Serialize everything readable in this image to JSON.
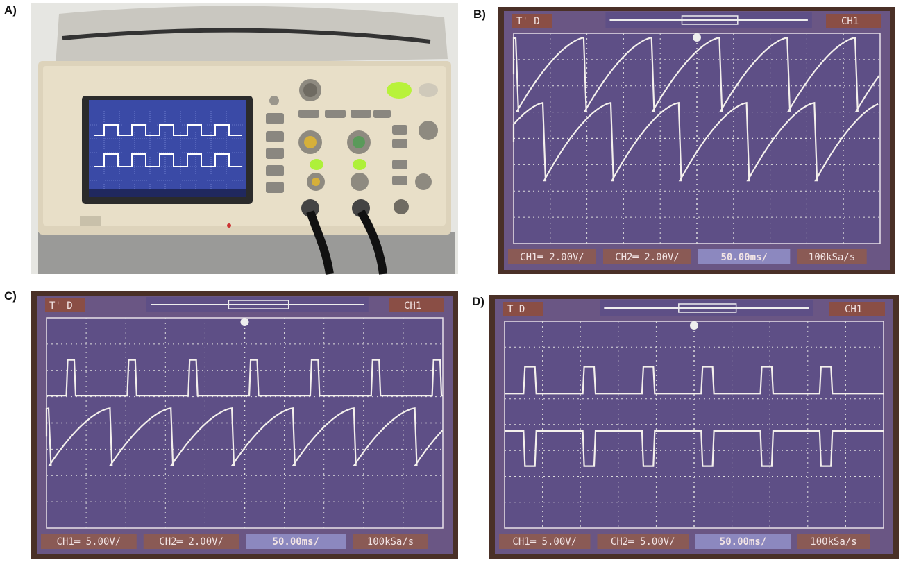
{
  "panels": [
    {
      "label": "A)"
    },
    {
      "label": "B)",
      "screen": {
        "trigger_mode": "T' D",
        "channel": "CH1",
        "status": [
          "CH1═ 2.00V/",
          "CH2═ 2.00V/",
          "50.00ms/",
          "100kSa/s"
        ]
      }
    },
    {
      "label": "C)",
      "screen": {
        "trigger_mode": "T' D",
        "channel": "CH1",
        "status": [
          "CH1═ 5.00V/",
          "CH2═ 2.00V/",
          "50.00ms/",
          "100kSa/s"
        ]
      }
    },
    {
      "label": "D)",
      "screen": {
        "trigger_mode": "T D",
        "channel": "CH1",
        "status": [
          "CH1═ 5.00V/",
          "CH2═ 5.00V/",
          "50.00ms/",
          "100kSa/s"
        ]
      }
    }
  ]
}
